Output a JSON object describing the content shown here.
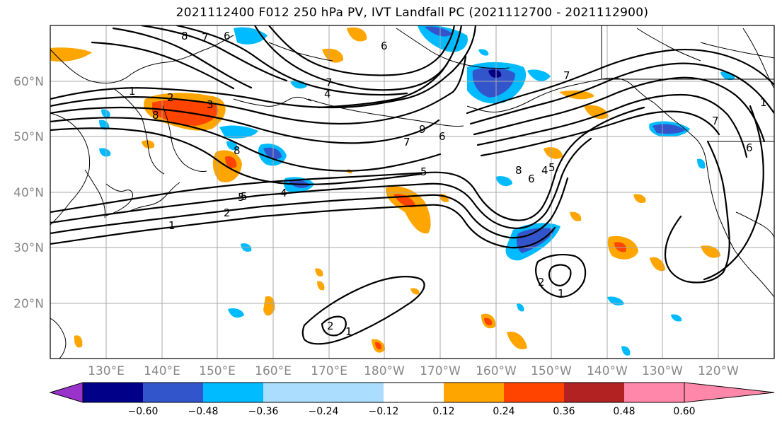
{
  "title": "2021112400 F012 250 hPa PV, IVT Landfall PC (2021112700 - 2021112900)",
  "lat_labels": [
    "60°N",
    "50°N",
    "40°N",
    "30°N",
    "20°N"
  ],
  "lon_labels": [
    "130°E",
    "140°E",
    "150°E",
    "160°E",
    "170°E",
    "180°W",
    "170°W",
    "160°W",
    "150°W",
    "140°W",
    "130°W",
    "120°W"
  ],
  "colorbar": {
    "colors": [
      "#9933cc",
      "#000088",
      "#3355cc",
      "#00bbff",
      "#aaddff",
      "#ffffff",
      "#ffee88",
      "#ffa500",
      "#ff4400",
      "#b22222",
      "#ff88aa"
    ],
    "tick_labels": [
      "−0.60",
      "−0.48",
      "−0.36",
      "−0.24",
      "−0.12",
      "0.12",
      "0.24",
      "0.36",
      "0.48",
      "0.60"
    ]
  },
  "contour_labels": [
    "8",
    "7",
    "6",
    "1",
    "2",
    "3",
    "4",
    "5",
    "6",
    "7",
    "8",
    "9",
    "8",
    "7",
    "6",
    "5",
    "4",
    "2",
    "1",
    "5",
    "6",
    "7",
    "8",
    "4",
    "5",
    "1",
    "2",
    "1",
    "2",
    "1",
    "6",
    "7"
  ],
  "colors": {
    "grid": "#a8a8a8",
    "axis_label": "#888888",
    "contour": "#000000"
  }
}
